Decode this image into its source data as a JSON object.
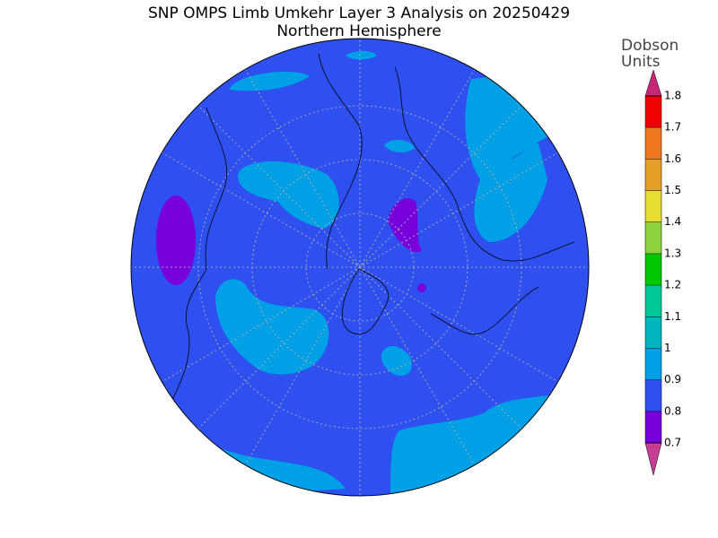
{
  "title": "SNP OMPS Limb Umkehr Layer 3 Analysis on 20250429",
  "subtitle": "Northern Hemisphere",
  "colorbar": {
    "unit_label": [
      "Dobson",
      "Units"
    ],
    "ticks": [
      0.7,
      0.8,
      0.9,
      1,
      1.1,
      1.2,
      1.3,
      1.4,
      1.5,
      1.6,
      1.7,
      1.8
    ],
    "colors": [
      "#7800dc",
      "#2f50f0",
      "#00a0e6",
      "#00b4c0",
      "#00c896",
      "#00c800",
      "#8cd23c",
      "#e6dc32",
      "#e6a028",
      "#f07820",
      "#f00000"
    ],
    "under_color": "#c83c96",
    "over_color": "#c8287a"
  }
}
